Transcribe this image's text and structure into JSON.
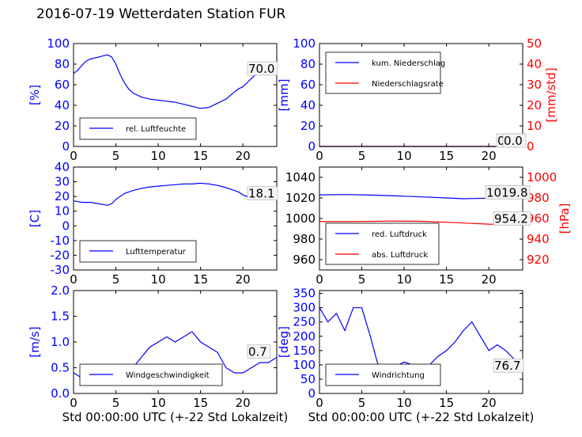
{
  "title": "2016-07-19 Wetterdaten Station FUR",
  "chart_data": [
    {
      "type": "line",
      "ylabel": "[%]",
      "xlim": [
        0,
        24
      ],
      "ylim": [
        0,
        100
      ],
      "xticks": [
        0,
        5,
        10,
        15,
        20
      ],
      "yticks": [
        0,
        20,
        40,
        60,
        80,
        100
      ],
      "legend_location": "lower-left",
      "annotation": "70.0",
      "series": [
        {
          "name": "rel. Luftfeuchte",
          "color": "#0000ff",
          "x": [
            0,
            0.5,
            1,
            1.5,
            2,
            2.5,
            3,
            3.5,
            4,
            4.5,
            5,
            5.5,
            6,
            6.5,
            7,
            8,
            9,
            10,
            11,
            12,
            13,
            14,
            15,
            16,
            17,
            18,
            19,
            19.5,
            20,
            20.5,
            21,
            21.5,
            22,
            22.5,
            23,
            24
          ],
          "y": [
            71,
            74,
            79,
            83,
            85,
            86,
            87,
            88,
            89,
            87,
            80,
            70,
            62,
            56,
            52,
            48,
            46,
            45,
            44,
            43,
            41,
            39,
            37,
            38,
            42,
            46,
            53,
            56,
            58,
            62,
            66,
            70,
            74,
            70,
            72,
            70
          ]
        }
      ]
    },
    {
      "type": "line",
      "ylabel": "[mm]",
      "y2label": "[mm/std]",
      "xlim": [
        0,
        24
      ],
      "ylim": [
        0,
        100
      ],
      "y2lim": [
        0,
        50
      ],
      "xticks": [
        0,
        5,
        10,
        15,
        20
      ],
      "yticks": [
        0,
        20,
        40,
        60,
        80,
        100
      ],
      "y2ticks": [
        0,
        10,
        20,
        30,
        40,
        50
      ],
      "legend_location": "upper-left",
      "annotations": [
        "0.0",
        "0.0"
      ],
      "series": [
        {
          "name": "kum. Niederschlag",
          "color": "#0000ff",
          "axis": "left",
          "x": [
            0,
            24
          ],
          "y": [
            0,
            0
          ]
        },
        {
          "name": "Niederschlagsrate",
          "color": "#ff0000",
          "axis": "right",
          "x": [
            0,
            24
          ],
          "y": [
            0,
            0
          ]
        }
      ]
    },
    {
      "type": "line",
      "ylabel": "[C]",
      "xlim": [
        0,
        24
      ],
      "ylim": [
        -30,
        40
      ],
      "xticks": [
        0,
        5,
        10,
        15,
        20
      ],
      "yticks": [
        -30,
        -20,
        -10,
        0,
        10,
        20,
        30,
        40
      ],
      "legend_location": "lower-left",
      "annotation": "18.1",
      "series": [
        {
          "name": "Lufttemperatur",
          "color": "#0000ff",
          "x": [
            0,
            1,
            2,
            3,
            4,
            4.5,
            5,
            6,
            7,
            8,
            9,
            10,
            11,
            12,
            13,
            14,
            15,
            16,
            17,
            18,
            19,
            19.5,
            20,
            21,
            22,
            23,
            24
          ],
          "y": [
            17,
            16,
            16,
            15,
            14,
            15,
            18,
            22,
            24,
            25.5,
            26.5,
            27,
            27.5,
            28,
            28.5,
            28.5,
            29,
            28.5,
            27.5,
            26,
            24,
            23,
            21,
            19,
            18.5,
            18,
            18.1
          ]
        }
      ]
    },
    {
      "type": "line",
      "ylabel": "[hPa]",
      "xlim": [
        0,
        24
      ],
      "ylim": [
        950,
        1050
      ],
      "y2lim": [
        910,
        1010
      ],
      "xticks": [
        0,
        5,
        10,
        15,
        20
      ],
      "yticks": [
        960,
        980,
        1000,
        1020,
        1040
      ],
      "y2ticks": [
        920,
        940,
        960,
        980,
        1000
      ],
      "legend_location": "lower-left",
      "annotations": [
        "1019.8",
        "954.2"
      ],
      "series": [
        {
          "name": "red. Luftdruck",
          "color": "#0000ff",
          "axis": "left",
          "x": [
            0,
            3,
            6,
            9,
            12,
            15,
            17,
            20,
            22,
            24
          ],
          "y": [
            1023,
            1023.3,
            1022.8,
            1022,
            1021,
            1020,
            1019.2,
            1019.8,
            1020,
            1019.8
          ]
        },
        {
          "name": "abs. Luftdruck",
          "color": "#ff0000",
          "axis": "right",
          "x": [
            0,
            4,
            8,
            12,
            16,
            18,
            20,
            22,
            24
          ],
          "y": [
            957,
            957,
            957.5,
            957.3,
            956,
            955.2,
            954.5,
            954.3,
            954.2
          ]
        }
      ]
    },
    {
      "type": "line",
      "ylabel": "[m/s]",
      "xlabel": "Std 00:00:00 UTC (+-22 Std Lokalzeit)",
      "xlim": [
        0,
        24
      ],
      "ylim": [
        0,
        2
      ],
      "xticks": [
        0,
        5,
        10,
        15,
        20
      ],
      "yticks": [
        0.0,
        0.5,
        1.0,
        1.5,
        2.0
      ],
      "legend_location": "lower-center",
      "annotation": "0.7",
      "series": [
        {
          "name": "Windgeschwindigkeit",
          "color": "#0000ff",
          "x": [
            0,
            1,
            2,
            3,
            4,
            5,
            6,
            7,
            8,
            9,
            10,
            11,
            12,
            13,
            14,
            15,
            16,
            17,
            18,
            19,
            20,
            21,
            22,
            23,
            24
          ],
          "y": [
            0.4,
            0.3,
            0.3,
            0.2,
            0.3,
            0.3,
            0.4,
            0.5,
            0.7,
            0.9,
            1.0,
            1.1,
            1.0,
            1.1,
            1.2,
            1.0,
            0.9,
            0.8,
            0.5,
            0.4,
            0.4,
            0.5,
            0.6,
            0.6,
            0.7
          ]
        }
      ]
    },
    {
      "type": "line",
      "ylabel": "[deg]",
      "xlabel": "Std 00:00:00 UTC (+-22 Std Lokalzeit)",
      "xlim": [
        0,
        24
      ],
      "ylim": [
        0,
        360
      ],
      "xticks": [
        0,
        5,
        10,
        15,
        20
      ],
      "yticks": [
        0,
        50,
        100,
        150,
        200,
        250,
        300,
        350
      ],
      "legend_location": "lower-left",
      "annotation": "76.7",
      "series": [
        {
          "name": "Windrichtung",
          "color": "#0000ff",
          "x": [
            0,
            1,
            2,
            3,
            4,
            5,
            6,
            7,
            8,
            9,
            10,
            11,
            12,
            13,
            14,
            15,
            16,
            17,
            18,
            19,
            20,
            21,
            22,
            23,
            24
          ],
          "y": [
            300,
            250,
            280,
            220,
            300,
            300,
            200,
            90,
            100,
            95,
            110,
            100,
            90,
            100,
            130,
            150,
            180,
            220,
            250,
            200,
            150,
            170,
            150,
            120,
            77
          ]
        }
      ]
    }
  ]
}
